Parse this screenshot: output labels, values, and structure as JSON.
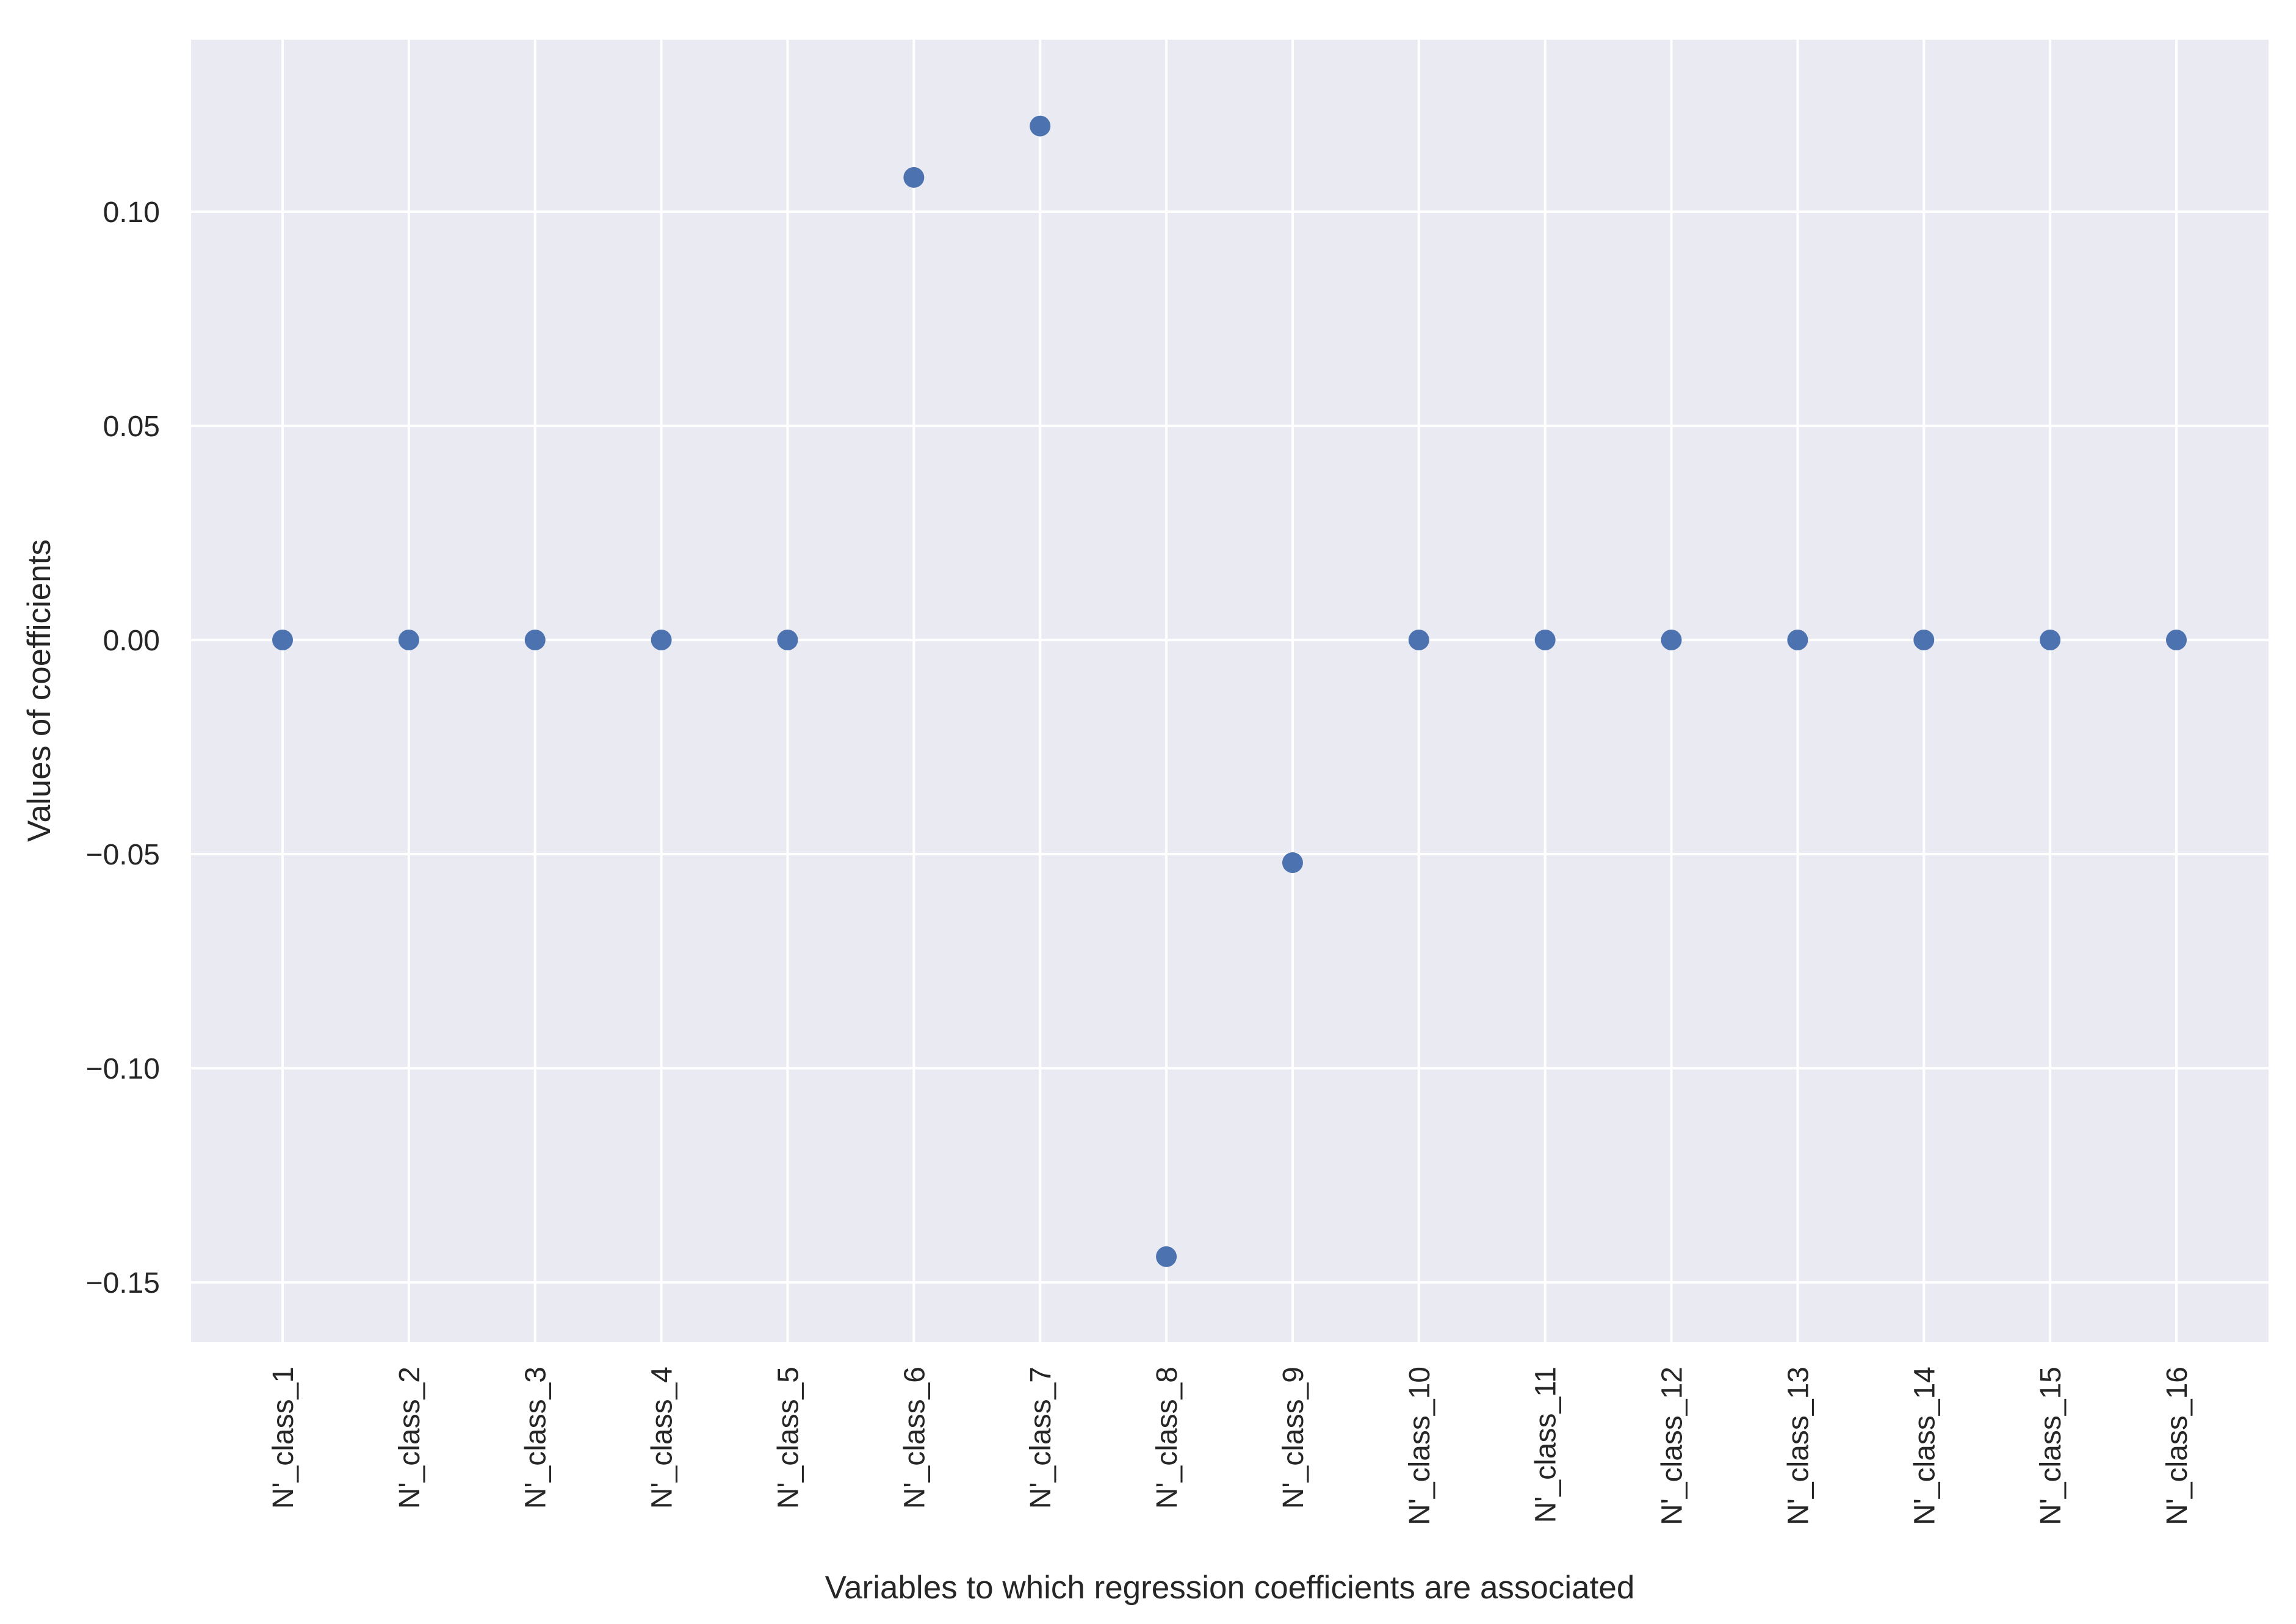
{
  "chart_data": {
    "type": "scatter",
    "title": "",
    "xlabel": "Variables to which regression coefficients are associated",
    "ylabel": "Values of coefficients",
    "categories": [
      "N'_class_1",
      "N'_class_2",
      "N'_class_3",
      "N'_class_4",
      "N'_class_5",
      "N'_class_6",
      "N'_class_7",
      "N'_class_8",
      "N'_class_9",
      "N'_class_10",
      "N'_class_11",
      "N'_class_12",
      "N'_class_13",
      "N'_class_14",
      "N'_class_15",
      "N'_class_16"
    ],
    "series": [
      {
        "values": [
          0.0,
          0.0,
          0.0,
          0.0,
          0.0,
          0.108,
          0.12,
          -0.144,
          -0.052,
          0.0,
          0.0,
          0.0,
          0.0,
          0.0,
          0.0,
          0.0
        ]
      }
    ],
    "ylim": [
      -0.164,
      0.14
    ],
    "yticks": [
      0.1,
      0.05,
      0.0,
      -0.05,
      -0.1,
      -0.15
    ],
    "ytick_labels": [
      "0.10",
      "0.05",
      "0.00",
      "−0.05",
      "−0.10",
      "−0.15"
    ],
    "grid": true,
    "legend": "none",
    "colors": {
      "background": "#EAEAF2",
      "grid": "#FFFFFF",
      "marker": "#4C72B0",
      "text": "#262626"
    }
  }
}
